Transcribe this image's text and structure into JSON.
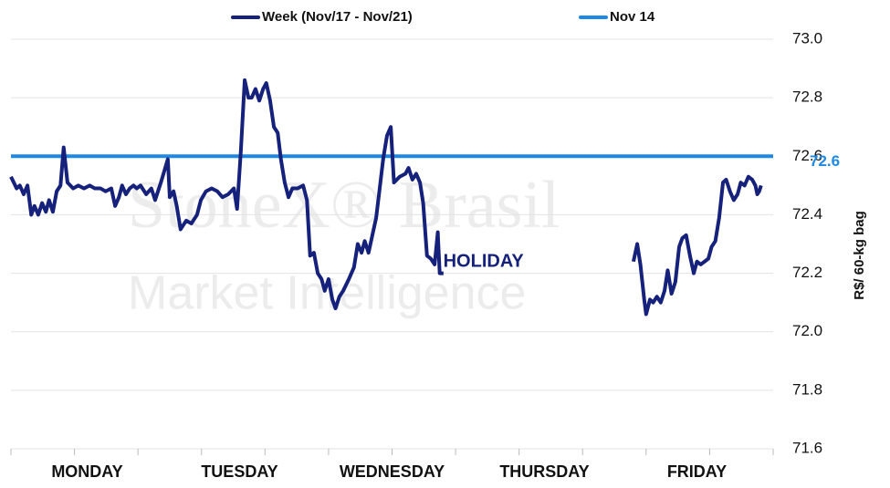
{
  "chart_data": {
    "type": "line",
    "categories": [
      "MONDAY",
      "TUESDAY",
      "WEDNESDAY",
      "THURSDAY",
      "FRIDAY"
    ],
    "annotation": "HOLIDAY",
    "watermark": [
      "StoneX® Brasil",
      "Market Intelligence"
    ],
    "y_label": "R$/ 60-kg bag",
    "xlim": [
      0,
      12
    ],
    "xticks": [
      0,
      1,
      2,
      3,
      4,
      5,
      6,
      7,
      8,
      9,
      10,
      11,
      12
    ],
    "ylim": [
      71.6,
      73.0
    ],
    "yticks": [
      71.6,
      71.8,
      {
        "value": 72.0,
        "label": "72.0"
      },
      72.2,
      72.4,
      72.6,
      72.8,
      {
        "value": 73.0,
        "label": "73.0"
      }
    ],
    "grid": true,
    "legend": "top",
    "series": [
      {
        "name": "Week (Nov/17 - Nov/21)",
        "color": "#15217a",
        "x": [
          0,
          0.09,
          0.14,
          0.2,
          0.26,
          0.32,
          0.37,
          0.43,
          0.49,
          0.55,
          0.6,
          0.66,
          0.72,
          0.78,
          0.83,
          0.89,
          0.98,
          1.06,
          1.15,
          1.24,
          1.32,
          1.41,
          1.49,
          1.58,
          1.64,
          1.7,
          1.75,
          1.81,
          1.87,
          1.93,
          1.98,
          2.04,
          2.13,
          2.21,
          2.27,
          2.36,
          2.47,
          2.5,
          2.56,
          2.61,
          2.67,
          2.76,
          2.84,
          2.93,
          2.99,
          3.07,
          3.16,
          3.25,
          3.33,
          3.42,
          3.51,
          3.56,
          3.62,
          3.68,
          3.74,
          3.79,
          3.85,
          3.91,
          3.97,
          4.02,
          4.08,
          4.14,
          4.2,
          4.25,
          4.31,
          4.37,
          4.43,
          4.51,
          4.6,
          4.66,
          4.71,
          4.77,
          4.83,
          4.89,
          4.94,
          5.0,
          5.06,
          5.11,
          5.17,
          5.23,
          5.32,
          5.4,
          5.46,
          5.52,
          5.57,
          5.63,
          5.69,
          5.75,
          5.8,
          5.86,
          5.92,
          5.98,
          6.03,
          6.12,
          6.21,
          6.26,
          6.32,
          6.38,
          6.44,
          6.49,
          6.55,
          6.61,
          6.67,
          6.72,
          6.75,
          6.81,
          null,
          9.8,
          9.86,
          9.91,
          9.97,
          10.0,
          10.06,
          10.11,
          10.17,
          10.23,
          10.29,
          10.34,
          10.4,
          10.46,
          10.52,
          10.57,
          10.63,
          10.69,
          10.75,
          10.8,
          10.86,
          10.92,
          10.98,
          11.03,
          11.09,
          11.15,
          11.21,
          11.26,
          11.32,
          11.38,
          11.44,
          11.49,
          11.55,
          11.61,
          11.67,
          11.72,
          11.75,
          11.78,
          11.81
        ],
        "values": [
          72.53,
          72.49,
          72.5,
          72.47,
          72.5,
          72.4,
          72.43,
          72.4,
          72.44,
          72.41,
          72.45,
          72.41,
          72.48,
          72.5,
          72.63,
          72.51,
          72.49,
          72.5,
          72.49,
          72.5,
          72.49,
          72.49,
          72.48,
          72.49,
          72.43,
          72.46,
          72.5,
          72.47,
          72.49,
          72.5,
          72.49,
          72.5,
          72.47,
          72.49,
          72.45,
          72.51,
          72.59,
          72.46,
          72.48,
          72.43,
          72.35,
          72.38,
          72.37,
          72.4,
          72.45,
          72.48,
          72.49,
          72.48,
          72.46,
          72.47,
          72.49,
          72.42,
          72.62,
          72.86,
          72.8,
          72.8,
          72.83,
          72.79,
          72.83,
          72.85,
          72.79,
          72.7,
          72.68,
          72.59,
          72.51,
          72.46,
          72.49,
          72.49,
          72.5,
          72.45,
          72.26,
          72.27,
          72.2,
          72.18,
          72.14,
          72.18,
          72.11,
          72.08,
          72.12,
          72.14,
          72.18,
          72.22,
          72.3,
          72.27,
          72.31,
          72.27,
          72.33,
          72.39,
          72.48,
          72.59,
          72.67,
          72.7,
          72.51,
          72.53,
          72.54,
          72.56,
          72.52,
          72.54,
          72.51,
          72.44,
          72.26,
          72.25,
          72.23,
          72.34,
          72.2,
          72.2,
          null,
          72.24,
          72.3,
          72.23,
          72.11,
          72.06,
          72.11,
          72.1,
          72.12,
          72.1,
          72.14,
          72.21,
          72.13,
          72.17,
          72.29,
          72.32,
          72.33,
          72.26,
          72.2,
          72.24,
          72.23,
          72.24,
          72.25,
          72.29,
          72.31,
          72.39,
          72.51,
          72.52,
          72.48,
          72.45,
          72.47,
          72.51,
          72.5,
          72.53,
          72.52,
          72.5,
          72.47,
          72.48,
          72.5
        ]
      },
      {
        "name": "Nov 14",
        "color": "#1e88e5",
        "x": [
          0,
          12
        ],
        "values": [
          72.6,
          72.6
        ]
      }
    ]
  }
}
